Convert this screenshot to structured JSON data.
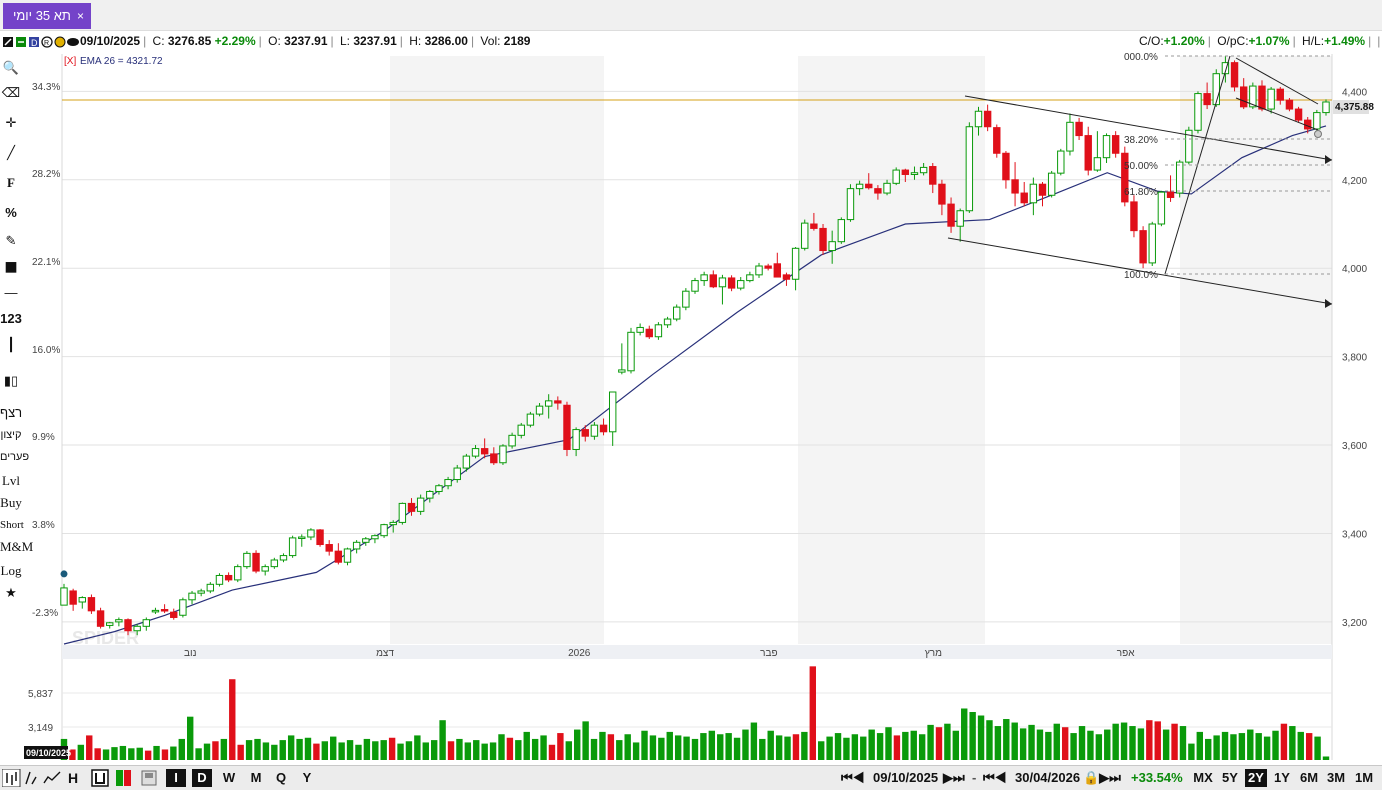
{
  "tab": {
    "label": "תא 35 יומי",
    "close": "×"
  },
  "info": {
    "date": "09/10/2025",
    "close_label": "C:",
    "close": "3276.85",
    "change": "+2.29%",
    "open_label": "O:",
    "open": "3237.91",
    "low_label": "L:",
    "low": "3237.91",
    "high_label": "H:",
    "high": "3286.00",
    "vol_label": "Vol:",
    "vol": "2189",
    "co_label": "C/O:",
    "co": "+1.20%",
    "opc_label": "O/pC:",
    "opc": "+1.07%",
    "hl_label": "H/L:",
    "hl": "+1.49%"
  },
  "indicator": {
    "tag": "[X]",
    "label": "EMA 26 = 4321.72"
  },
  "last_price": "4,375.88",
  "watermark": "SPIDER",
  "tools": [
    "search-icon",
    "eraser-icon",
    "crosshair-icon",
    "line-icon",
    "F",
    "%",
    "pencil-icon",
    "color-square-icon",
    "dash-icon",
    "123",
    "vertical-line-icon",
    "candles-icon",
    "רצף",
    "קיצון",
    "פערים",
    "Lvl",
    "Buy",
    "Short",
    "M&M",
    "Log",
    "star-icon"
  ],
  "fib_labels": [
    "000.0%",
    "38.20%",
    "50.00%",
    "61.80%",
    "100.0%"
  ],
  "volume_ticks": [
    "5,837",
    "3,149"
  ],
  "bottom": {
    "left_buttons": [
      "I",
      "D",
      "W",
      "M",
      "Q",
      "Y"
    ],
    "start_date": "09/10/2025",
    "end_date": "30/04/2026",
    "period_change": "+33.54%",
    "ranges": [
      "MX",
      "5Y",
      "2Y",
      "1Y",
      "6M",
      "3M",
      "1M"
    ],
    "selected_range": "2Y",
    "vol_corner_date": "09/10/2025"
  },
  "colors": {
    "up": "#0a9a0a",
    "down": "#e0101a",
    "ema": "#28307a",
    "accent": "#7443c9",
    "price_line": "#d4a017"
  },
  "chart_data": {
    "type": "candlestick",
    "x_month_labels": [
      {
        "index": 7,
        "label": "נוב"
      },
      {
        "index": 18,
        "label": "דצמ"
      },
      {
        "index": 29,
        "label": "2026"
      },
      {
        "index": 40,
        "label": "פבר"
      },
      {
        "index": 49,
        "label": "מרץ"
      },
      {
        "index": 60,
        "label": "אפר"
      }
    ],
    "y_right_ticks": [
      3200,
      3400,
      3600,
      3800,
      4000,
      4200,
      4400
    ],
    "y_left_ticks": [
      "34.3%",
      "28.2%",
      "22.1%",
      "16.0%",
      "9.9%",
      "3.8%",
      "-2.3%"
    ],
    "ylim": [
      3150,
      4480
    ],
    "ohlc": [
      [
        3237.91,
        3286.0,
        3237.91,
        3276.85
      ],
      [
        3270,
        3275,
        3225,
        3240
      ],
      [
        3245,
        3258,
        3230,
        3255
      ],
      [
        3255,
        3262,
        3218,
        3225
      ],
      [
        3225,
        3232,
        3185,
        3190
      ],
      [
        3192,
        3200,
        3185,
        3198
      ],
      [
        3200,
        3210,
        3190,
        3205
      ],
      [
        3205,
        3208,
        3170,
        3180
      ],
      [
        3180,
        3195,
        3170,
        3190
      ],
      [
        3190,
        3210,
        3180,
        3205
      ],
      [
        3225,
        3232,
        3218,
        3226
      ],
      [
        3228,
        3240,
        3220,
        3225
      ],
      [
        3222,
        3230,
        3205,
        3210
      ],
      [
        3215,
        3255,
        3210,
        3250
      ],
      [
        3250,
        3270,
        3240,
        3265
      ],
      [
        3265,
        3275,
        3258,
        3270
      ],
      [
        3270,
        3290,
        3265,
        3285
      ],
      [
        3285,
        3310,
        3280,
        3305
      ],
      [
        3305,
        3312,
        3290,
        3295
      ],
      [
        3295,
        3330,
        3290,
        3325
      ],
      [
        3325,
        3360,
        3320,
        3355
      ],
      [
        3355,
        3362,
        3310,
        3315
      ],
      [
        3315,
        3330,
        3305,
        3325
      ],
      [
        3325,
        3345,
        3320,
        3340
      ],
      [
        3340,
        3355,
        3335,
        3350
      ],
      [
        3350,
        3395,
        3345,
        3390
      ],
      [
        3390,
        3398,
        3370,
        3392
      ],
      [
        3392,
        3412,
        3385,
        3408
      ],
      [
        3408,
        3410,
        3370,
        3375
      ],
      [
        3375,
        3385,
        3350,
        3360
      ],
      [
        3360,
        3378,
        3330,
        3335
      ],
      [
        3335,
        3368,
        3328,
        3365
      ],
      [
        3365,
        3385,
        3355,
        3380
      ],
      [
        3380,
        3392,
        3372,
        3388
      ],
      [
        3388,
        3398,
        3378,
        3395
      ],
      [
        3395,
        3422,
        3390,
        3420
      ],
      [
        3420,
        3430,
        3402,
        3425
      ],
      [
        3425,
        3470,
        3420,
        3468
      ],
      [
        3468,
        3480,
        3440,
        3450
      ],
      [
        3450,
        3488,
        3442,
        3480
      ]
    ],
    "ohlc_note_skip": "",
    "ohlc2": [
      [
        3480,
        3498,
        3470,
        3495
      ],
      [
        3495,
        3512,
        3488,
        3508
      ],
      [
        3508,
        3528,
        3500,
        3522
      ],
      [
        3522,
        3555,
        3515,
        3548
      ],
      [
        3548,
        3580,
        3540,
        3575
      ],
      [
        3575,
        3600,
        3570,
        3592
      ],
      [
        3592,
        3615,
        3570,
        3580
      ],
      [
        3580,
        3595,
        3555,
        3560
      ],
      [
        3560,
        3602,
        3555,
        3598
      ],
      [
        3598,
        3628,
        3592,
        3622
      ],
      [
        3622,
        3650,
        3615,
        3645
      ],
      [
        3645,
        3675,
        3640,
        3670
      ],
      [
        3670,
        3695,
        3665,
        3688
      ],
      [
        3688,
        3715,
        3660,
        3700
      ],
      [
        3700,
        3710,
        3680,
        3695
      ],
      [
        3690,
        3698,
        3575,
        3590
      ],
      [
        3590,
        3640,
        3575,
        3635
      ],
      [
        3635,
        3645,
        3608,
        3620
      ],
      [
        3620,
        3652,
        3612,
        3645
      ],
      [
        3645,
        3660,
        3622,
        3630
      ],
      [
        3630,
        3720,
        3598,
        3720
      ]
    ],
    "ohlc3": [
      [
        3765,
        3830,
        3760,
        3770
      ],
      [
        3768,
        3865,
        3762,
        3855
      ],
      [
        3855,
        3875,
        3848,
        3866
      ],
      [
        3862,
        3870,
        3840,
        3845
      ],
      [
        3845,
        3878,
        3838,
        3872
      ],
      [
        3872,
        3890,
        3865,
        3885
      ],
      [
        3885,
        3918,
        3880,
        3912
      ],
      [
        3912,
        3955,
        3905,
        3948
      ],
      [
        3948,
        3978,
        3942,
        3972
      ],
      [
        3972,
        3992,
        3960,
        3985
      ],
      [
        3985,
        3995,
        3955,
        3958
      ],
      [
        3958,
        3985,
        3918,
        3978
      ],
      [
        3978,
        3984,
        3948,
        3955
      ],
      [
        3955,
        3980,
        3950,
        3972
      ],
      [
        3972,
        3992,
        3968,
        3985
      ],
      [
        3985,
        4012,
        3978,
        4005
      ],
      [
        4005,
        4010,
        3995,
        4000
      ],
      [
        4010,
        4035,
        3995,
        3980
      ],
      [
        3985,
        3990,
        3960,
        3975
      ],
      [
        3975,
        4048,
        3950,
        4045
      ],
      [
        4045,
        4110,
        4040,
        4102
      ],
      [
        4100,
        4125,
        4085,
        4090
      ],
      [
        4090,
        4100,
        4030,
        4040
      ],
      [
        4040,
        4085,
        4010,
        4060
      ],
      [
        4060,
        4115,
        4055,
        4110
      ],
      [
        4110,
        4190,
        4105,
        4180
      ],
      [
        4180,
        4198,
        4165,
        4190
      ],
      [
        4190,
        4215,
        4178,
        4182
      ],
      [
        4180,
        4188,
        4155,
        4170
      ],
      [
        4170,
        4200,
        4165,
        4192
      ]
    ],
    "ohlc4": [
      [
        4192,
        4228,
        4188,
        4222
      ],
      [
        4222,
        4225,
        4195,
        4212
      ],
      [
        4212,
        4230,
        4200,
        4216
      ],
      [
        4216,
        4238,
        4210,
        4228
      ],
      [
        4230,
        4238,
        4170,
        4190
      ],
      [
        4190,
        4200,
        4120,
        4145
      ],
      [
        4145,
        4160,
        4080,
        4095
      ],
      [
        4095,
        4135,
        4060,
        4130
      ],
      [
        4130,
        4330,
        4125,
        4320
      ],
      [
        4320,
        4365,
        4300,
        4355
      ],
      [
        4355,
        4370,
        4310,
        4320
      ],
      [
        4318,
        4325,
        4250,
        4260
      ],
      [
        4260,
        4265,
        4180,
        4200
      ],
      [
        4200,
        4240,
        4140,
        4170
      ],
      [
        4170,
        4195,
        4140,
        4148
      ],
      [
        4148,
        4205,
        4120,
        4190
      ],
      [
        4190,
        4195,
        4140,
        4165
      ],
      [
        4165,
        4220,
        4160,
        4215
      ],
      [
        4215,
        4270,
        4210,
        4265
      ],
      [
        4265,
        4350,
        4255,
        4330
      ],
      [
        4330,
        4340,
        4290,
        4300
      ],
      [
        4300,
        4320,
        4210,
        4222
      ],
      [
        4222,
        4310,
        4218,
        4250
      ],
      [
        4250,
        4305,
        4238,
        4300
      ],
      [
        4300,
        4310,
        4250,
        4260
      ],
      [
        4260,
        4275,
        4140,
        4150
      ],
      [
        4150,
        4165,
        4070,
        4085
      ],
      [
        4085,
        4095,
        4000,
        4012
      ],
      [
        4012,
        4105,
        4005,
        4100
      ],
      [
        4100,
        4175,
        4095,
        4172
      ],
      [
        4172,
        4210,
        4150,
        4160
      ],
      [
        4170,
        4245,
        4160,
        4240
      ],
      [
        4240,
        4320,
        4235,
        4312
      ],
      [
        4312,
        4400,
        4305,
        4395
      ],
      [
        4395,
        4420,
        4360,
        4370
      ],
      [
        4370,
        4450,
        4365,
        4440
      ],
      [
        4440,
        4480,
        4420,
        4465
      ],
      [
        4465,
        4470,
        4400,
        4410
      ],
      [
        4410,
        4430,
        4360,
        4365
      ],
      [
        4365,
        4420,
        4360,
        4412
      ],
      [
        4412,
        4425,
        4355,
        4360
      ],
      [
        4360,
        4410,
        4350,
        4405
      ],
      [
        4405,
        4410,
        4370,
        4380
      ],
      [
        4380,
        4385,
        4355,
        4360
      ],
      [
        4360,
        4365,
        4330,
        4335
      ],
      [
        4335,
        4342,
        4305,
        4315
      ],
      [
        4315,
        4358,
        4310,
        4352
      ],
      [
        4352,
        4382,
        4345,
        4376
      ]
    ],
    "ema_anchor": [
      [
        0,
        3150
      ],
      [
        6,
        3178
      ],
      [
        12,
        3215
      ],
      [
        20,
        3272
      ],
      [
        30,
        3312
      ],
      [
        38,
        3405
      ],
      [
        50,
        3574
      ],
      [
        60,
        3612
      ],
      [
        70,
        3760
      ],
      [
        80,
        3900
      ],
      [
        90,
        4030
      ],
      [
        100,
        4100
      ],
      [
        110,
        4110
      ],
      [
        118,
        4170
      ],
      [
        124,
        4216
      ],
      [
        130,
        4174
      ],
      [
        134,
        4168
      ],
      [
        140,
        4250
      ],
      [
        146,
        4300
      ],
      [
        150,
        4321.72
      ]
    ],
    "volume": [
      [
        1800,
        1
      ],
      [
        900,
        0
      ],
      [
        1300,
        1
      ],
      [
        2100,
        0
      ],
      [
        1000,
        0
      ],
      [
        900,
        1
      ],
      [
        1100,
        1
      ],
      [
        1200,
        1
      ],
      [
        1000,
        1
      ],
      [
        1050,
        1
      ],
      [
        800,
        0
      ],
      [
        1200,
        1
      ],
      [
        900,
        0
      ],
      [
        1150,
        1
      ],
      [
        1800,
        1
      ],
      [
        3700,
        1
      ],
      [
        1000,
        1
      ],
      [
        1400,
        1
      ],
      [
        1600,
        0
      ],
      [
        1800,
        1
      ],
      [
        6900,
        0
      ],
      [
        1300,
        0
      ],
      [
        1700,
        1
      ],
      [
        1800,
        1
      ],
      [
        1500,
        1
      ],
      [
        1300,
        1
      ],
      [
        1700,
        1
      ],
      [
        2100,
        1
      ],
      [
        1800,
        1
      ],
      [
        1900,
        1
      ],
      [
        1400,
        0
      ],
      [
        1600,
        1
      ],
      [
        2000,
        1
      ],
      [
        1500,
        1
      ],
      [
        1700,
        1
      ],
      [
        1300,
        1
      ],
      [
        1800,
        1
      ],
      [
        1600,
        1
      ],
      [
        1700,
        1
      ],
      [
        1900,
        0
      ],
      [
        1400,
        1
      ],
      [
        1600,
        1
      ],
      [
        2100,
        1
      ],
      [
        1500,
        1
      ],
      [
        1700,
        1
      ],
      [
        3400,
        1
      ],
      [
        1600,
        0
      ],
      [
        1800,
        1
      ],
      [
        1500,
        1
      ],
      [
        1700,
        1
      ],
      [
        1400,
        1
      ],
      [
        1500,
        1
      ],
      [
        2200,
        1
      ],
      [
        1900,
        0
      ],
      [
        1700,
        1
      ],
      [
        2400,
        1
      ],
      [
        1800,
        1
      ],
      [
        2100,
        1
      ],
      [
        1300,
        0
      ],
      [
        2300,
        0
      ],
      [
        1600,
        1
      ],
      [
        2600,
        1
      ],
      [
        3300,
        1
      ],
      [
        1800,
        1
      ],
      [
        2400,
        1
      ],
      [
        2200,
        0
      ],
      [
        1700,
        1
      ],
      [
        2200,
        1
      ],
      [
        1500,
        1
      ],
      [
        2500,
        1
      ],
      [
        2100,
        1
      ],
      [
        1900,
        1
      ],
      [
        2400,
        1
      ],
      [
        2100,
        1
      ],
      [
        2000,
        1
      ],
      [
        1800,
        1
      ],
      [
        2300,
        1
      ],
      [
        2500,
        1
      ],
      [
        2200,
        1
      ],
      [
        2300,
        1
      ],
      [
        1900,
        1
      ],
      [
        2600,
        1
      ],
      [
        3200,
        1
      ],
      [
        1800,
        1
      ],
      [
        2500,
        1
      ],
      [
        2100,
        1
      ],
      [
        2000,
        1
      ],
      [
        2200,
        0
      ],
      [
        2400,
        1
      ],
      [
        8000,
        0
      ],
      [
        1600,
        1
      ],
      [
        2000,
        1
      ],
      [
        2300,
        1
      ],
      [
        1900,
        1
      ],
      [
        2200,
        1
      ],
      [
        2000,
        1
      ],
      [
        2600,
        1
      ],
      [
        2300,
        1
      ],
      [
        2800,
        1
      ],
      [
        2100,
        0
      ],
      [
        2400,
        1
      ],
      [
        2500,
        1
      ],
      [
        2200,
        1
      ],
      [
        3000,
        1
      ],
      [
        2800,
        0
      ],
      [
        3100,
        1
      ],
      [
        2500,
        1
      ],
      [
        4400,
        1
      ],
      [
        4100,
        1
      ],
      [
        3800,
        1
      ],
      [
        3400,
        1
      ],
      [
        2900,
        1
      ],
      [
        3500,
        1
      ],
      [
        3200,
        1
      ],
      [
        2700,
        1
      ],
      [
        3000,
        1
      ],
      [
        2600,
        1
      ],
      [
        2400,
        1
      ],
      [
        3100,
        1
      ],
      [
        2800,
        0
      ],
      [
        2300,
        1
      ],
      [
        2900,
        1
      ],
      [
        2500,
        1
      ],
      [
        2200,
        1
      ],
      [
        2600,
        1
      ],
      [
        3100,
        1
      ],
      [
        3200,
        1
      ],
      [
        2900,
        1
      ],
      [
        2700,
        1
      ],
      [
        3400,
        0
      ],
      [
        3300,
        0
      ],
      [
        2600,
        1
      ],
      [
        3100,
        0
      ],
      [
        2900,
        1
      ],
      [
        1400,
        1
      ],
      [
        2400,
        1
      ],
      [
        1800,
        1
      ],
      [
        2100,
        1
      ],
      [
        2400,
        1
      ],
      [
        2200,
        1
      ],
      [
        2300,
        1
      ],
      [
        2600,
        1
      ],
      [
        2300,
        1
      ],
      [
        2000,
        1
      ],
      [
        2500,
        1
      ],
      [
        3100,
        0
      ],
      [
        2900,
        1
      ],
      [
        2400,
        1
      ],
      [
        2300,
        0
      ],
      [
        2000,
        1
      ],
      [
        300,
        1
      ]
    ]
  }
}
